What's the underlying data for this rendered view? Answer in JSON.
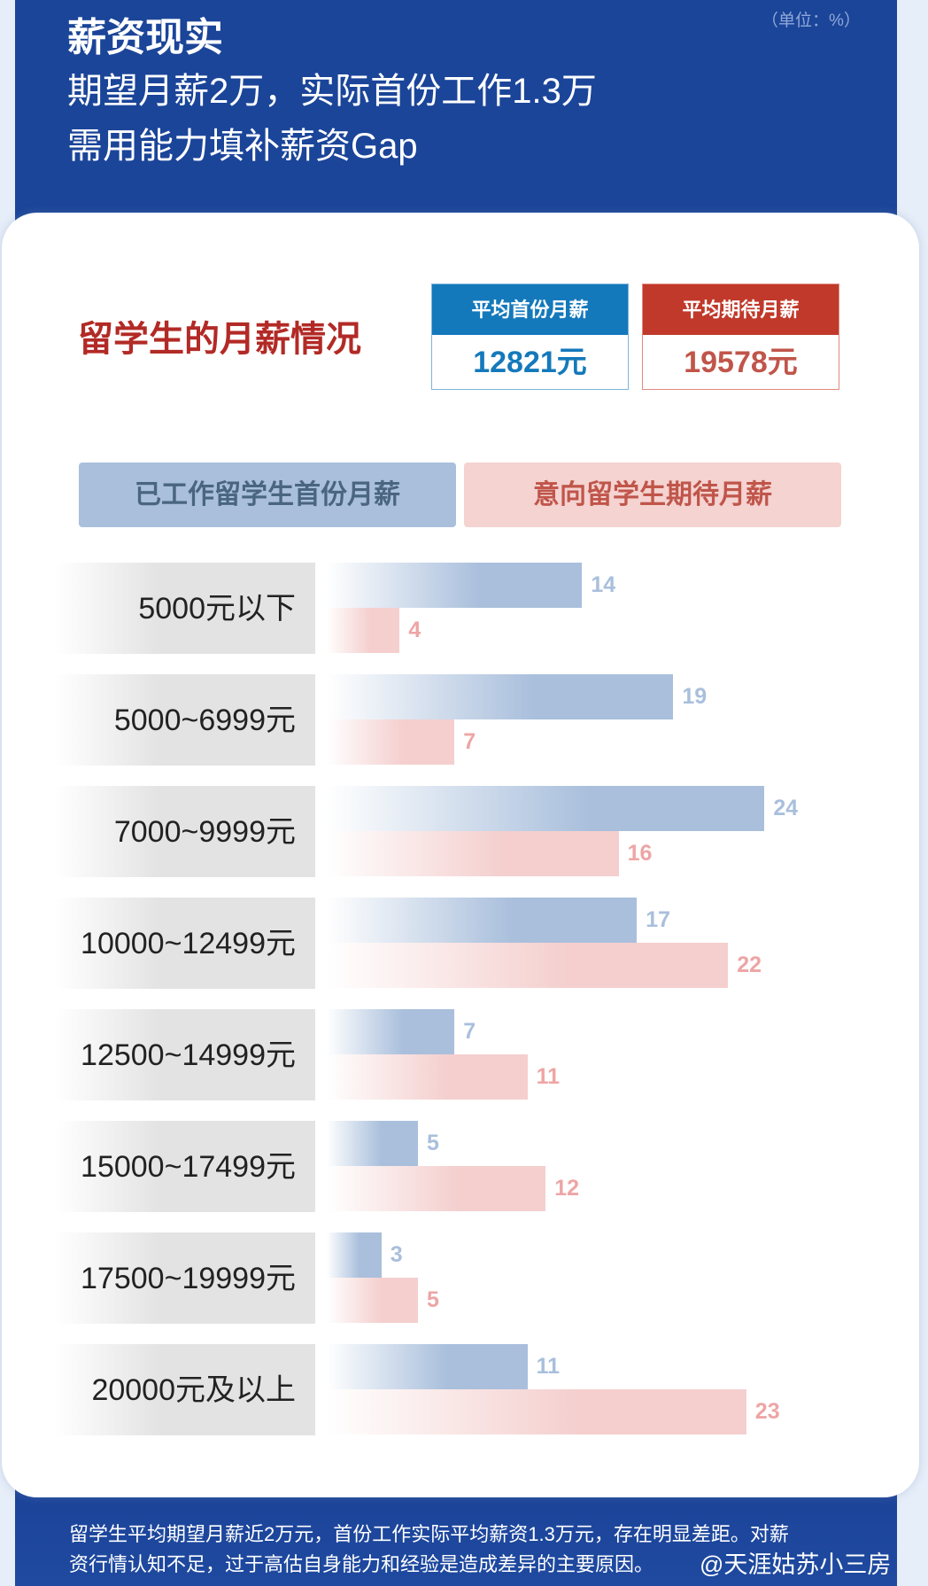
{
  "header": {
    "title": "薪资现实",
    "subtitle_1": "期望月薪2万，实际首份工作1.3万",
    "subtitle_2": "需用能力填补薪资Gap",
    "unit": "（单位：%）"
  },
  "section_title": "留学生的月薪情况",
  "kpis": [
    {
      "label": "平均首份月薪",
      "value": "12821元",
      "color": "#1479bb"
    },
    {
      "label": "平均期待月薪",
      "value": "19578元",
      "color": "#c0392b"
    }
  ],
  "chart_data": {
    "type": "bar",
    "orientation": "horizontal",
    "unit": "%",
    "categories": [
      "5000元以下",
      "5000~6999元",
      "7000~9999元",
      "10000~12499元",
      "12500~14999元",
      "15000~17499元",
      "17500~19999元",
      "20000元及以上"
    ],
    "series": [
      {
        "name": "已工作留学生首份月薪",
        "color": "#a9bfdc",
        "values": [
          14,
          19,
          24,
          17,
          7,
          5,
          3,
          11
        ]
      },
      {
        "name": "意向留学生期待月薪",
        "color": "#f4cfce",
        "values": [
          4,
          7,
          16,
          22,
          11,
          12,
          5,
          23
        ]
      }
    ],
    "legend_position": "top"
  },
  "footer": {
    "line_1": "留学生平均期望月薪近2万元，首份工作实际平均薪资1.3万元，存在明显差距。对薪",
    "line_2": "资行情认知不足，过于高估自身能力和经验是造成差异的主要原因。",
    "watermark": "@天涯姑苏小三房"
  }
}
